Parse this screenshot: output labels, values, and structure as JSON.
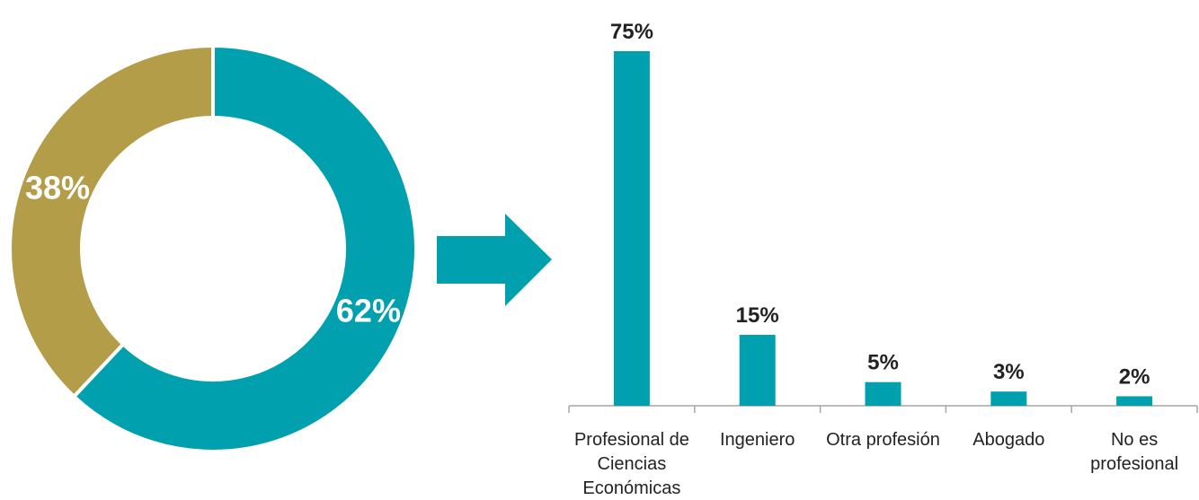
{
  "colors": {
    "primary": "#00a0ae",
    "secondary": "#b39d49",
    "text": "#222222",
    "axis": "#a6a6a6"
  },
  "icons": {
    "arrow": "right-arrow-icon"
  },
  "chart_data": [
    {
      "type": "pie",
      "variant": "donut",
      "slices": [
        {
          "value": 62,
          "label": "62%",
          "color": "#00a0ae"
        },
        {
          "value": 38,
          "label": "38%",
          "color": "#b39d49"
        }
      ]
    },
    {
      "type": "bar",
      "categories": [
        [
          "Profesional de",
          "Ciencias",
          "Económicas"
        ],
        [
          "Ingeniero"
        ],
        [
          "Otra profesión"
        ],
        [
          "Abogado"
        ],
        [
          "No es",
          "profesional"
        ]
      ],
      "values": [
        75,
        15,
        5,
        3,
        2
      ],
      "labels": [
        "75%",
        "15%",
        "5%",
        "3%",
        "2%"
      ],
      "color": "#00a0ae",
      "ylim": [
        0,
        75
      ],
      "grid": false
    }
  ]
}
